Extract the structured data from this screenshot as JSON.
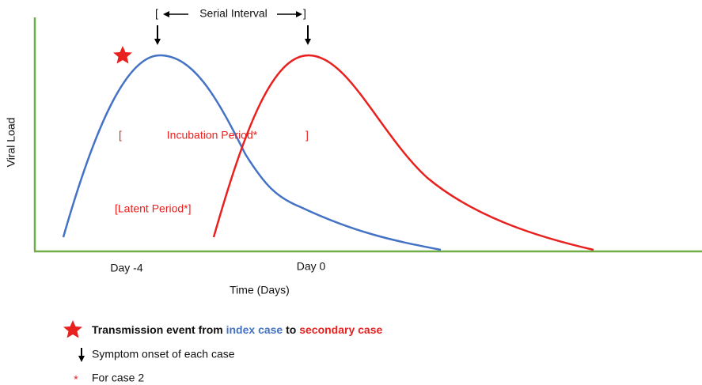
{
  "serial_interval": {
    "open": "[",
    "label": "Serial Interval",
    "close": "]"
  },
  "incubation_period": {
    "open": "[",
    "label": "Incubation Period*",
    "close": "]"
  },
  "latent_period": "[Latent Period*]",
  "y_axis_label": "Viral Load",
  "x_axis_label": "Time (Days)",
  "x_ticks": [
    "Day -4",
    "Day 0"
  ],
  "legend": {
    "transmission": {
      "prefix": "Transmission event from ",
      "index": "index case",
      "middle": " to ",
      "secondary": "secondary case"
    },
    "symptom_onset": "Symptom onset of each case",
    "footnote": {
      "symbol": "*",
      "text": "For case 2"
    }
  }
}
